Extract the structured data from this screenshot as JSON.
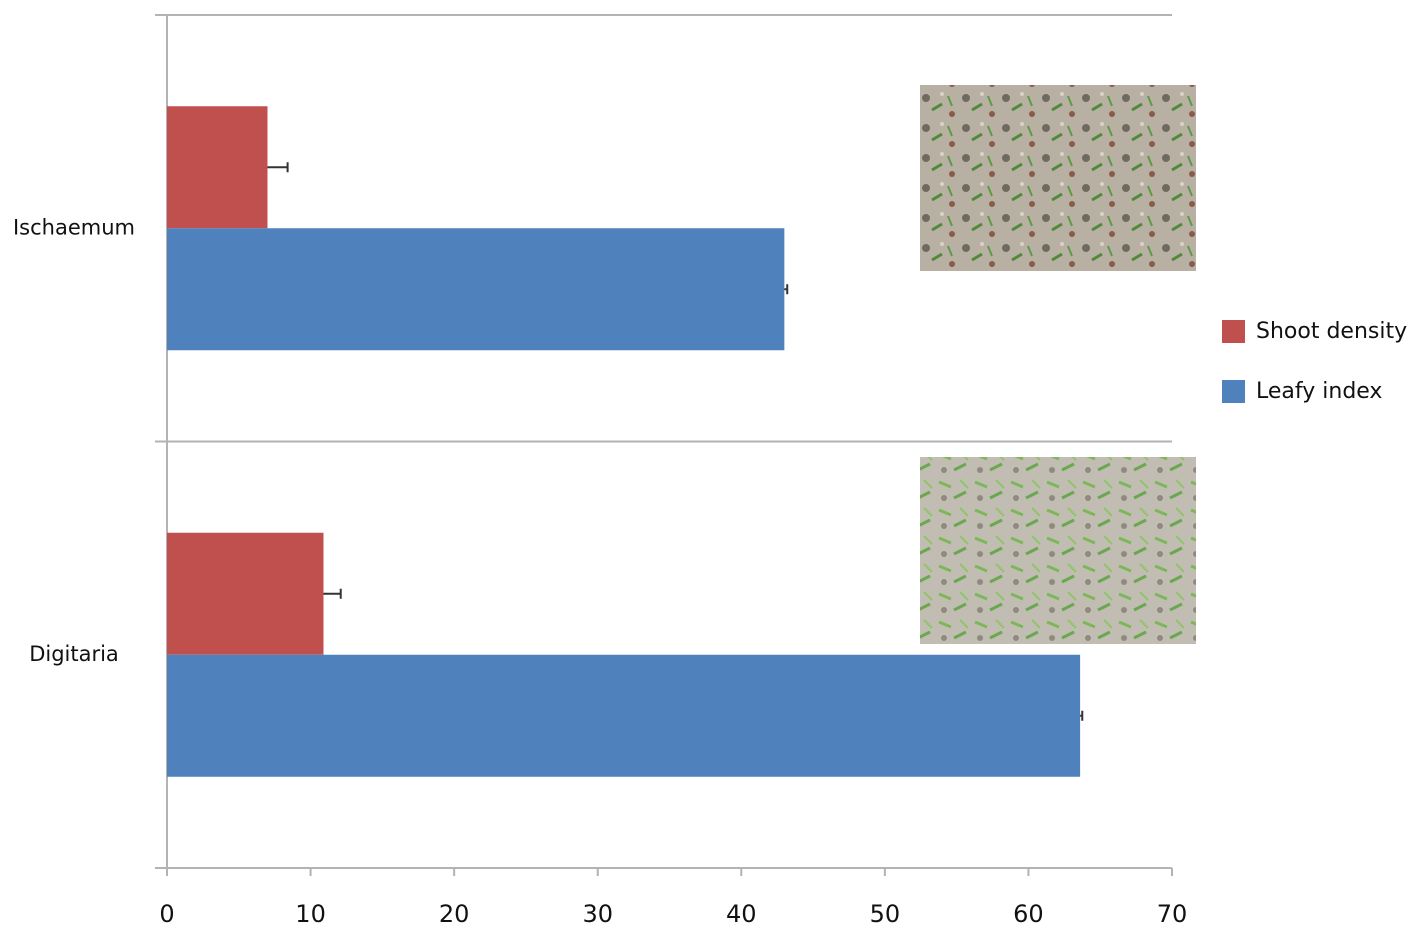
{
  "chart_data": {
    "type": "bar",
    "orientation": "horizontal",
    "categories": [
      "Ischaemum",
      "Digitaria"
    ],
    "series": [
      {
        "name": "Shoot density",
        "color": "#c0504d",
        "values": [
          7.0,
          10.9
        ],
        "errors": [
          1.4,
          1.2
        ]
      },
      {
        "name": "Leafy index",
        "color": "#4f81bd",
        "values": [
          43.0,
          63.6
        ],
        "errors": [
          0.2,
          0.15
        ]
      }
    ],
    "xlim": [
      0,
      70
    ],
    "xticks": [
      0,
      10,
      20,
      30,
      40,
      50,
      60,
      70
    ],
    "legend": "right"
  }
}
